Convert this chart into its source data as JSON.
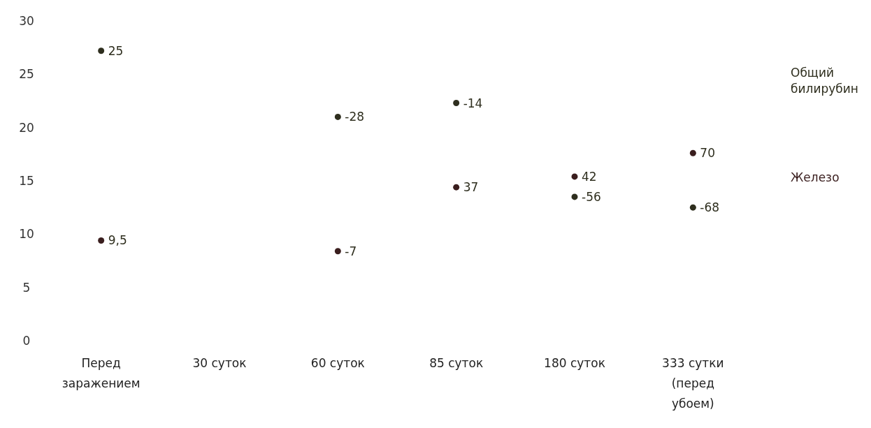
{
  "chart_data": {
    "type": "scatter",
    "marker": "circle",
    "categories": [
      "Перед заражением",
      "30 суток",
      "60 суток",
      "85 суток",
      "180 суток",
      "333 сутки (перед убоем)"
    ],
    "ylim": [
      0,
      30
    ],
    "yticks": [
      0,
      5,
      10,
      15,
      20,
      25,
      30
    ],
    "series": [
      {
        "name": "Общий билирубин",
        "color": "#2e2e1e",
        "values": [
          27.2,
          null,
          21.0,
          22.3,
          13.5,
          12.5
        ]
      },
      {
        "name": "Железо",
        "color": "#3a1e1e",
        "values": [
          9.4,
          null,
          8.4,
          14.4,
          15.4,
          17.6
        ]
      }
    ],
    "annotations": [
      {
        "text": "25",
        "x": "Перед заражением",
        "y": 27.2
      },
      {
        "text": "-28",
        "x": "60 суток",
        "y": 21.0
      },
      {
        "text": "-14",
        "x": "85 суток",
        "y": 22.3
      },
      {
        "text": "-56",
        "x": "180 суток",
        "y": 13.5
      },
      {
        "text": "-68",
        "x": "333 сутки (перед убоем)",
        "y": 12.5
      },
      {
        "text": "9,5",
        "x": "Перед заражением",
        "y": 9.4
      },
      {
        "text": "-7",
        "x": "60 суток",
        "y": 8.4
      },
      {
        "text": "37",
        "x": "85 суток",
        "y": 14.4
      },
      {
        "text": "42",
        "x": "180 суток",
        "y": 15.4
      },
      {
        "text": "70",
        "x": "333 сутки (перед убоем)",
        "y": 17.6
      }
    ]
  }
}
